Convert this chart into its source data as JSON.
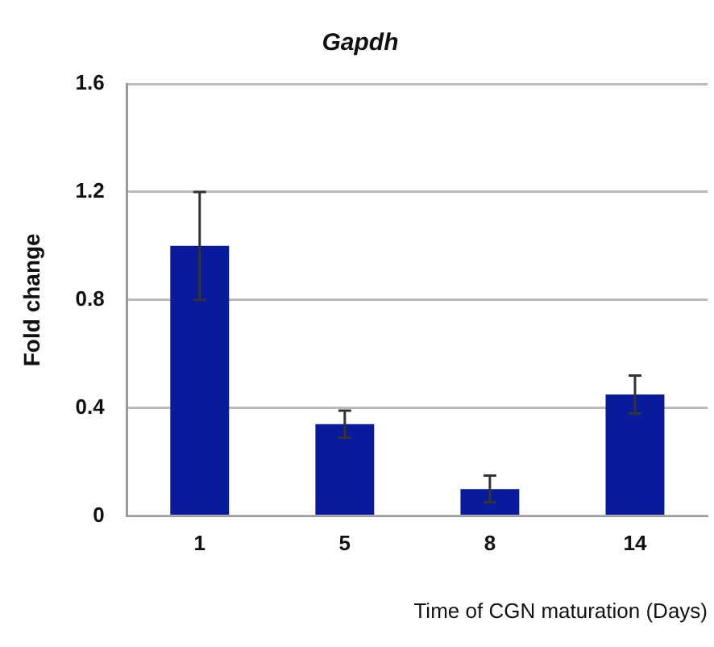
{
  "chart_data": {
    "type": "bar",
    "title": "Gapdh",
    "xlabel": "Time of CGN maturation (Days)",
    "ylabel": "Fold change",
    "categories": [
      "1",
      "5",
      "8",
      "14"
    ],
    "values": [
      1.0,
      0.34,
      0.1,
      0.45
    ],
    "errors": [
      0.2,
      0.05,
      0.05,
      0.07
    ],
    "color": "#0a1a9c",
    "ylim": [
      0,
      1.6
    ],
    "yticks": [
      {
        "value": 0,
        "label": "0"
      },
      {
        "value": 0.4,
        "label": "0.4"
      },
      {
        "value": 0.8,
        "label": "0.8"
      },
      {
        "value": 1.2,
        "label": "1.2"
      },
      {
        "value": 1.6,
        "label": "1.6"
      }
    ],
    "grid": "y"
  }
}
